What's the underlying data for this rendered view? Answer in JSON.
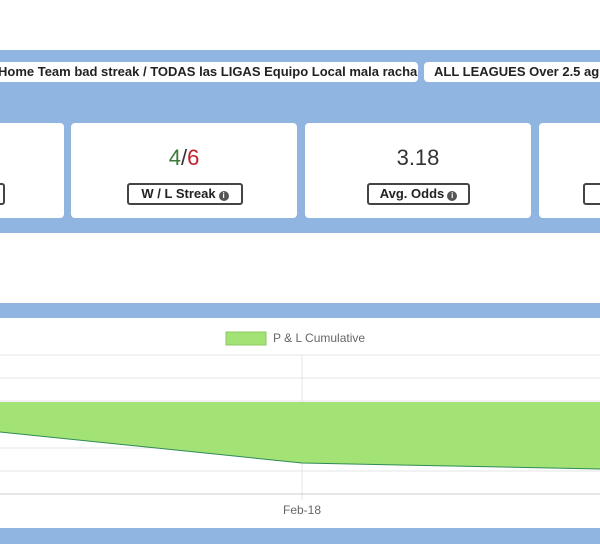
{
  "tabs": [
    "Home Team bad streak / TODAS las LIGAS Equipo Local mala racha",
    "ALL LEAGUES Over 2.5 ag"
  ],
  "stats": [
    {
      "win": "4",
      "separator": "/",
      "loss": "6",
      "label": "W / L Streak"
    },
    {
      "value": "3.18",
      "label": "Avg. Odds"
    }
  ],
  "chart": {
    "legend": "P & L Cumulative",
    "x_label": "Feb-18"
  }
}
